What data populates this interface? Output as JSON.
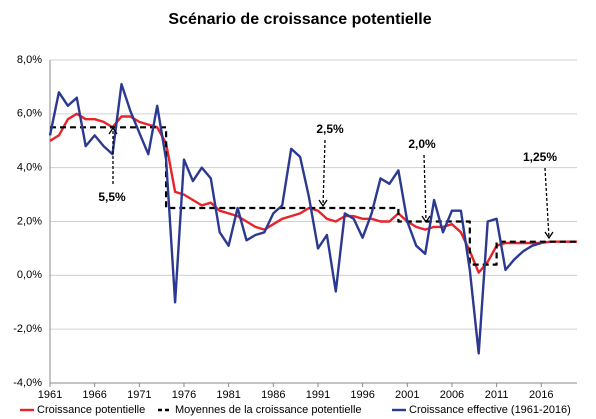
{
  "chart_data": {
    "type": "line",
    "title": "Scénario de croissance potentielle",
    "xlim": [
      1961,
      2020
    ],
    "xticks": [
      1961,
      1966,
      1971,
      1976,
      1981,
      1986,
      1991,
      1996,
      2001,
      2006,
      2011,
      2016
    ],
    "ylim": [
      -4,
      8
    ],
    "yticks": [
      {
        "value": -4,
        "label": "-4,0%"
      },
      {
        "value": -2,
        "label": "-2,0%"
      },
      {
        "value": 0,
        "label": "0,0%"
      },
      {
        "value": 2,
        "label": "2,0%"
      },
      {
        "value": 4,
        "label": "4,0%"
      },
      {
        "value": 6,
        "label": "6,0%"
      },
      {
        "value": 8,
        "label": "8,0%"
      }
    ],
    "grid": true,
    "legend": "bottom",
    "series": [
      {
        "name": "Croissance potentielle",
        "color": "#e8232a",
        "style": "solid",
        "x": [
          1961,
          1962,
          1963,
          1964,
          1965,
          1966,
          1967,
          1968,
          1969,
          1970,
          1971,
          1972,
          1973,
          1974,
          1975,
          1976,
          1977,
          1978,
          1979,
          1980,
          1981,
          1982,
          1983,
          1984,
          1985,
          1986,
          1987,
          1988,
          1989,
          1990,
          1991,
          1992,
          1993,
          1994,
          1995,
          1996,
          1997,
          1998,
          1999,
          2000,
          2001,
          2002,
          2003,
          2004,
          2005,
          2006,
          2007,
          2008,
          2009,
          2010,
          2011,
          2012,
          2013,
          2014,
          2015,
          2016,
          2017,
          2018,
          2019,
          2020
        ],
        "values": [
          5.0,
          5.2,
          5.8,
          6.0,
          5.8,
          5.8,
          5.7,
          5.5,
          5.9,
          5.9,
          5.7,
          5.6,
          5.5,
          4.9,
          3.1,
          3.0,
          2.8,
          2.6,
          2.7,
          2.4,
          2.3,
          2.2,
          2.0,
          1.8,
          1.7,
          1.9,
          2.1,
          2.2,
          2.3,
          2.5,
          2.4,
          2.1,
          2.0,
          2.2,
          2.2,
          2.1,
          2.1,
          2.0,
          2.0,
          2.3,
          2.0,
          1.8,
          1.7,
          1.8,
          1.8,
          1.9,
          1.6,
          0.9,
          0.1,
          0.5,
          1.1,
          1.2,
          1.2,
          1.2,
          1.2,
          1.2,
          1.25,
          1.25,
          1.25,
          1.25
        ]
      },
      {
        "name": "Moyennes de la croissance potentielle",
        "color": "#000000",
        "style": "dashed",
        "x": [
          1961,
          1974,
          1974,
          2000,
          2000,
          2008,
          2008,
          2011,
          2011,
          2020
        ],
        "values": [
          5.5,
          5.5,
          2.5,
          2.5,
          2.0,
          2.0,
          0.4,
          0.4,
          1.25,
          1.25
        ]
      },
      {
        "name": "Croissance effective (1961-2016)",
        "color": "#2b3990",
        "style": "solid",
        "x": [
          1961,
          1962,
          1963,
          1964,
          1965,
          1966,
          1967,
          1968,
          1969,
          1970,
          1971,
          1972,
          1973,
          1974,
          1975,
          1976,
          1977,
          1978,
          1979,
          1980,
          1981,
          1982,
          1983,
          1984,
          1985,
          1986,
          1987,
          1988,
          1989,
          1990,
          1991,
          1992,
          1993,
          1994,
          1995,
          1996,
          1997,
          1998,
          1999,
          2000,
          2001,
          2002,
          2003,
          2004,
          2005,
          2006,
          2007,
          2008,
          2009,
          2010,
          2011,
          2012,
          2013,
          2014,
          2015,
          2016
        ],
        "values": [
          5.2,
          6.8,
          6.3,
          6.6,
          4.8,
          5.2,
          4.8,
          4.5,
          7.1,
          6.1,
          5.3,
          4.5,
          6.3,
          4.3,
          -1.0,
          4.3,
          3.5,
          4.0,
          3.6,
          1.6,
          1.1,
          2.5,
          1.3,
          1.5,
          1.6,
          2.3,
          2.6,
          4.7,
          4.4,
          2.9,
          1.0,
          1.5,
          -0.6,
          2.3,
          2.1,
          1.4,
          2.3,
          3.6,
          3.4,
          3.9,
          2.0,
          1.1,
          0.8,
          2.8,
          1.6,
          2.4,
          2.4,
          0.2,
          -2.9,
          2.0,
          2.1,
          0.2,
          0.6,
          0.9,
          1.1,
          1.2
        ]
      }
    ],
    "annotations": [
      "5,5%",
      "2,5%",
      "2,0%",
      "1,25%"
    ]
  }
}
